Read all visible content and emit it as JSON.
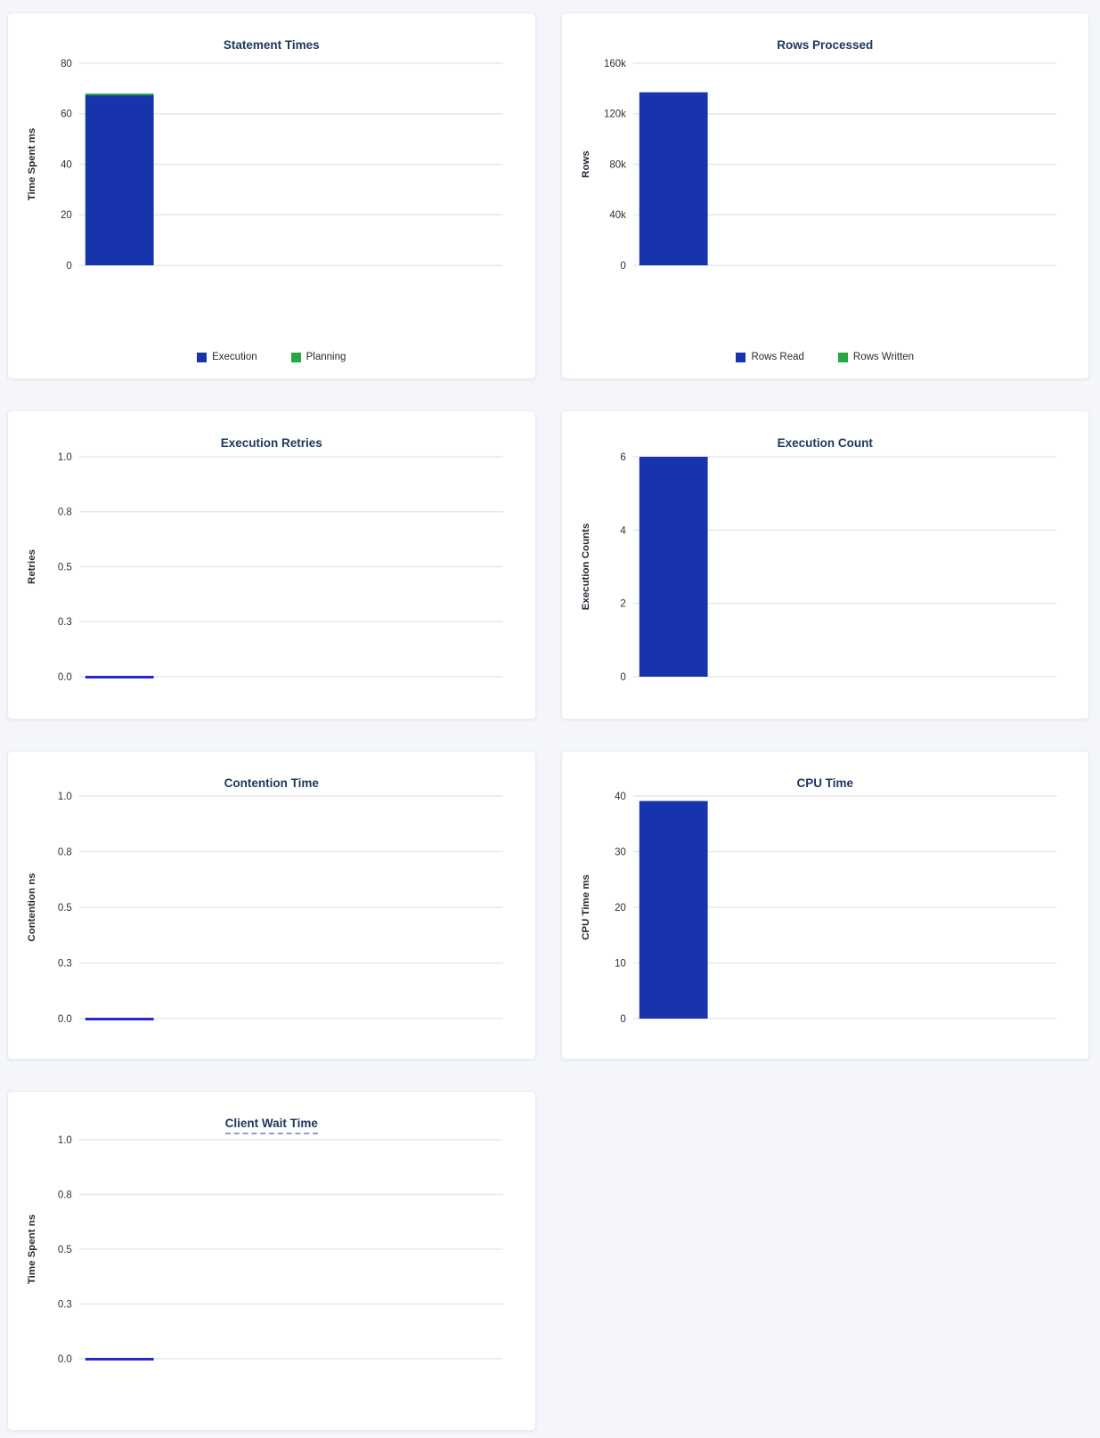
{
  "page": {
    "background": "#f4f6fa"
  },
  "colors": {
    "title": "#1c375c",
    "bar_blue": "#1834ac",
    "bar_green": "#26a644",
    "zero_line_blue": "#2628c8",
    "grid": "#e7e7e7",
    "tick_text": "#2d3239",
    "axis_label_text": "#242a35"
  },
  "chart_data": [
    {
      "type": "bar",
      "title": "Statement Times",
      "ylabel": "Time Spent ms",
      "ylim": [
        0,
        80
      ],
      "ytick_labels": [
        "0",
        "20",
        "40",
        "60",
        "80"
      ],
      "stacked": true,
      "legend_position": "bottom",
      "series": [
        {
          "name": "Execution",
          "color_key": "bar_blue",
          "values": [
            67.3
          ]
        },
        {
          "name": "Planning",
          "color_key": "bar_green",
          "values": [
            0.7
          ]
        }
      ]
    },
    {
      "type": "bar",
      "title": "Rows Processed",
      "ylabel": "Rows",
      "ylim": [
        0,
        160000
      ],
      "ytick_labels": [
        "0",
        "40k",
        "80k",
        "120k",
        "160k"
      ],
      "stacked": true,
      "legend_position": "bottom",
      "series": [
        {
          "name": "Rows Read",
          "color_key": "bar_blue",
          "values": [
            137000
          ]
        },
        {
          "name": "Rows Written",
          "color_key": "bar_green",
          "values": [
            0
          ]
        }
      ]
    },
    {
      "type": "bar",
      "title": "Execution Retries",
      "ylabel": "Retries",
      "ylim": [
        0,
        1
      ],
      "ytick_labels": [
        "0.0",
        "0.3",
        "0.5",
        "0.8",
        "1.0"
      ],
      "value": 0
    },
    {
      "type": "bar",
      "title": "Execution Count",
      "ylabel": "Execution Counts",
      "ylim": [
        0,
        6
      ],
      "ytick_labels": [
        "0",
        "2",
        "4",
        "6"
      ],
      "value": 6
    },
    {
      "type": "bar",
      "title": "Contention Time",
      "ylabel": "Contention ns",
      "ylim": [
        0,
        1
      ],
      "ytick_labels": [
        "0.0",
        "0.3",
        "0.5",
        "0.8",
        "1.0"
      ],
      "value": 0
    },
    {
      "type": "bar",
      "title": "CPU Time",
      "ylabel": "CPU Time ms",
      "ylim": [
        0,
        40
      ],
      "ytick_labels": [
        "0",
        "10",
        "20",
        "30",
        "40"
      ],
      "value": 39.1
    },
    {
      "type": "bar",
      "title": "Client Wait Time",
      "ylabel": "Time Spent ns",
      "ylim": [
        0,
        1
      ],
      "ytick_labels": [
        "0.0",
        "0.3",
        "0.5",
        "0.8",
        "1.0"
      ],
      "title_style": "dashed-underline",
      "value": 0
    }
  ]
}
